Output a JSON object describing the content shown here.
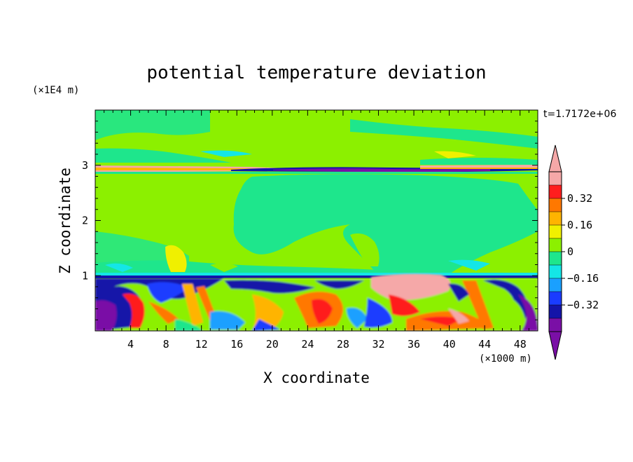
{
  "chart_data": {
    "type": "heatmap",
    "title": "potential temperature deviation",
    "xlabel": "X coordinate",
    "ylabel": "Z coordinate",
    "x_unit": "(×1000 m)",
    "y_unit": "(×1E4 m)",
    "time_label": "t=1.7172e+06",
    "xlim": [
      0,
      50
    ],
    "ylim": [
      0,
      4
    ],
    "x_ticks": [
      4,
      8,
      12,
      16,
      20,
      24,
      28,
      32,
      36,
      40,
      44,
      48
    ],
    "y_ticks": [
      1,
      2,
      3
    ],
    "colorbar": {
      "levels": [
        -0.48,
        -0.4,
        -0.32,
        -0.24,
        -0.16,
        -0.08,
        0,
        0.08,
        0.16,
        0.24,
        0.32,
        0.4,
        0.48
      ],
      "labeled_levels": [
        0.32,
        0.16,
        0,
        -0.16,
        -0.32
      ],
      "colors": [
        "#7a0fa6",
        "#1414a8",
        "#1a3cff",
        "#1aa0ff",
        "#14e6e6",
        "#1ee68c",
        "#8cf000",
        "#f0f000",
        "#ffb400",
        "#ff7800",
        "#ff1e1e",
        "#f5a8a8"
      ],
      "over_color": "#f5a8a8",
      "under_color": "#7a0fa6"
    }
  }
}
